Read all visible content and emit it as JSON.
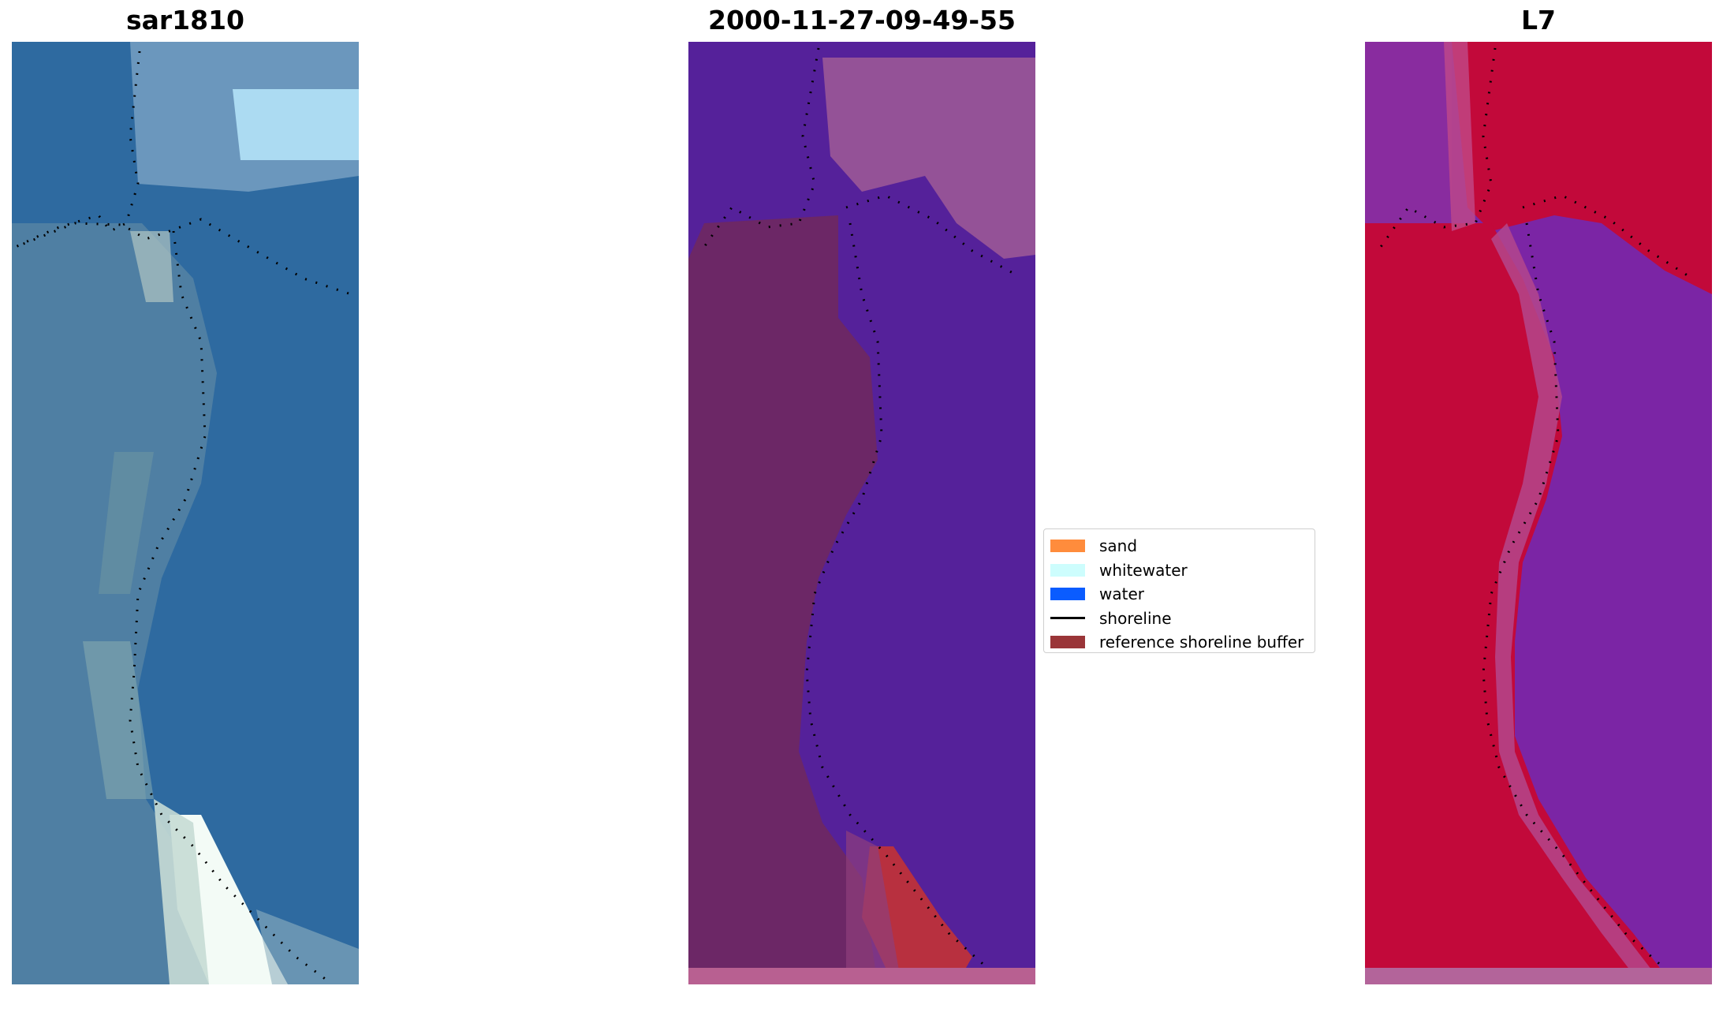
{
  "panels": [
    {
      "title": "sar1810",
      "name": "sar1810"
    },
    {
      "title": "2000-11-27-09-49-55",
      "name": "classified"
    },
    {
      "title": "L7",
      "name": "l7"
    }
  ],
  "legend": {
    "items": [
      {
        "label": "sand",
        "color": "#ff8c3c",
        "kind": "patch"
      },
      {
        "label": "whitewater",
        "color": "#cdfdfd",
        "kind": "patch"
      },
      {
        "label": "water",
        "color": "#0a5cff",
        "kind": "patch"
      },
      {
        "label": "shoreline",
        "color": "#000000",
        "kind": "line"
      },
      {
        "label": "reference shoreline buffer",
        "color": "#9a3538",
        "kind": "patch"
      }
    ]
  },
  "colors": {
    "rgb_water": "#2e6aa0",
    "rgb_land": "#4f7fa3",
    "rgb_whitewater": "#f3fbf6",
    "class_water": "#55219a",
    "class_land": "#6c2766",
    "class_highlight": "#a05a96",
    "class_buffer": "#b8303f",
    "class_strip": "#b86091",
    "l7_land": "#c2093a",
    "l7_water": "#7b25a5",
    "l7_strip": "#b3649a"
  }
}
